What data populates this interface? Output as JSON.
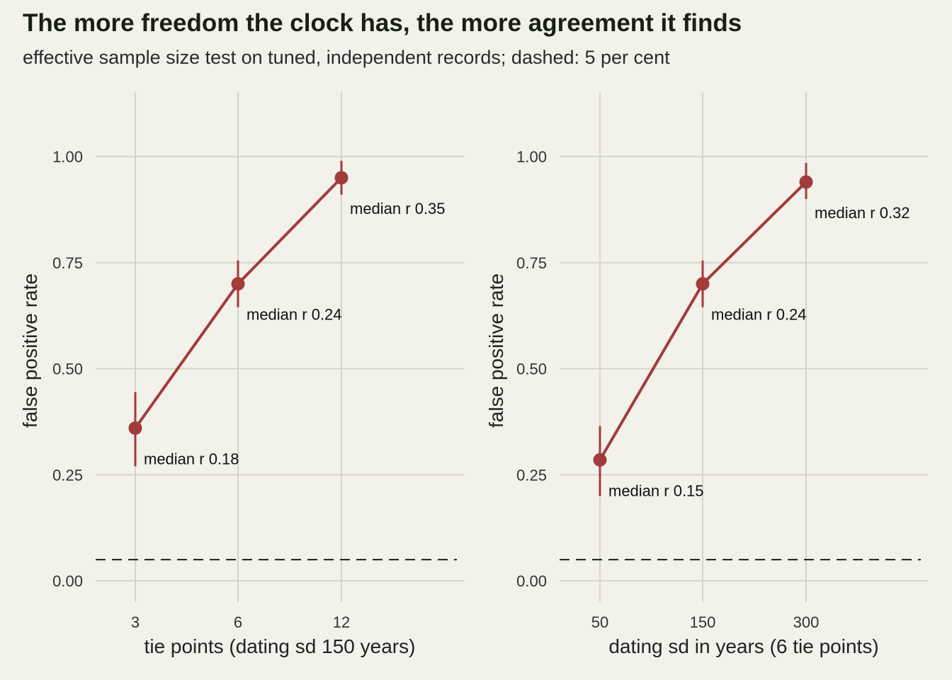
{
  "figure": {
    "title": "The more freedom the clock has, the more agreement it finds",
    "subtitle": "effective sample size test on tuned, independent records; dashed: 5 per cent"
  },
  "colors": {
    "background": "#f2f1ea",
    "series": "#a23b3b",
    "grid": "#d6d6c6",
    "reference_line": "#2a2a2a"
  },
  "chart_data": [
    {
      "type": "line",
      "xlabel": "tie points (dating sd 150 years)",
      "ylabel": "false positive rate",
      "categories": [
        "3",
        "6",
        "12"
      ],
      "values": [
        0.36,
        0.7,
        0.95
      ],
      "error_low": [
        0.27,
        0.645,
        0.91
      ],
      "error_high": [
        0.445,
        0.755,
        0.99
      ],
      "annotations": [
        "median r 0.18",
        "median r 0.24",
        "median r 0.35"
      ],
      "yticks": [
        "0.00",
        "0.25",
        "0.50",
        "0.75",
        "1.00"
      ],
      "ylim": [
        -0.05,
        1.15
      ],
      "reference_y": 0.05,
      "grid": true
    },
    {
      "type": "line",
      "xlabel": "dating sd in years (6 tie points)",
      "ylabel": "false positive rate",
      "categories": [
        "50",
        "150",
        "300"
      ],
      "values": [
        0.285,
        0.7,
        0.94
      ],
      "error_low": [
        0.2,
        0.645,
        0.9
      ],
      "error_high": [
        0.365,
        0.755,
        0.985
      ],
      "annotations": [
        "median r 0.15",
        "median r 0.24",
        "median r 0.32"
      ],
      "yticks": [
        "0.00",
        "0.25",
        "0.50",
        "0.75",
        "1.00"
      ],
      "ylim": [
        -0.05,
        1.15
      ],
      "reference_y": 0.05,
      "grid": true
    }
  ]
}
